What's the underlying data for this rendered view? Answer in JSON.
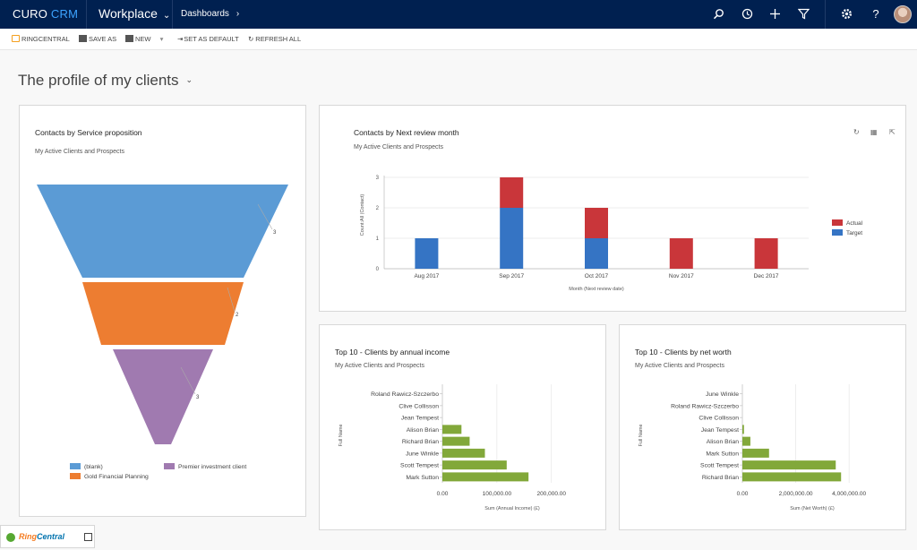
{
  "header": {
    "brand_main": "CURO",
    "brand_accent": "CRM",
    "area": "Workplace",
    "breadcrumb": "Dashboards",
    "icons": [
      "search-icon",
      "history-icon",
      "plus-icon",
      "filter-icon",
      "settings-icon",
      "help-icon"
    ]
  },
  "commands": {
    "ringcentral": "RINGCENTRAL",
    "save_as": "SAVE AS",
    "new": "NEW",
    "set_default": "SET AS DEFAULT",
    "refresh_all": "REFRESH ALL"
  },
  "page": {
    "title": "The profile of my clients"
  },
  "funnel_panel": {
    "title": "Contacts by Service proposition",
    "subtitle": "My Active Clients and Prospects",
    "legend": [
      "(blank)",
      "Premier investment client",
      "Gold Financial Planning"
    ]
  },
  "review_panel": {
    "title": "Contacts by Next review month",
    "subtitle": "My Active Clients and Prospects"
  },
  "income_panel": {
    "title": "Top 10 - Clients by annual income",
    "subtitle": "My Active Clients and Prospects"
  },
  "networth_panel": {
    "title": "Top 10 - Clients by net worth",
    "subtitle": "My Active Clients and Prospects"
  },
  "footer": {
    "ringcentral_a": "Ring",
    "ringcentral_b": "Central"
  },
  "chart_data": [
    {
      "id": "funnel",
      "type": "funnel",
      "title": "Contacts by Service proposition",
      "categories": [
        "(blank)",
        "Gold Financial Planning",
        "Premier investment client"
      ],
      "values": [
        3,
        2,
        3
      ],
      "colors": [
        "#5b9bd5",
        "#ed7d31",
        "#a07ab0"
      ]
    },
    {
      "id": "review",
      "type": "bar",
      "stacked": true,
      "title": "Contacts by Next review month",
      "categories": [
        "Aug 2017",
        "Sep 2017",
        "Oct 2017",
        "Nov 2017",
        "Dec 2017"
      ],
      "series": [
        {
          "name": "Target",
          "color": "#3574c4",
          "values": [
            1,
            2,
            1,
            0,
            0
          ]
        },
        {
          "name": "Actual",
          "color": "#c9363a",
          "values": [
            0,
            1,
            1,
            1,
            1
          ]
        }
      ],
      "legend": [
        "Actual",
        "Target"
      ],
      "xlabel": "Month (Next review date)",
      "ylabel": "Count:All (Contact)",
      "ylim": [
        0,
        3
      ],
      "yticks": [
        "0",
        "1",
        "2",
        "3"
      ]
    },
    {
      "id": "income",
      "type": "bar",
      "orientation": "horizontal",
      "title": "Top 10 - Clients by annual income",
      "categories": [
        "Roland Rawicz-Szczerbo",
        "Clive Collisson",
        "Jean Tempest",
        "Alison Brian",
        "Richard Brian",
        "June Winkle",
        "Scott Tempest",
        "Mark Sutton"
      ],
      "values": [
        0,
        0,
        0,
        35000,
        50000,
        78000,
        118000,
        158000
      ],
      "color": "#82a83a",
      "xlabel": "Sum (Annual Income) (£)",
      "ylabel": "Full Name",
      "xlim": [
        0,
        230000
      ],
      "xticks": [
        "0.00",
        "100,000.00",
        "200,000.00"
      ],
      "xtick_values": [
        0,
        100000,
        200000
      ]
    },
    {
      "id": "networth",
      "type": "bar",
      "orientation": "horizontal",
      "title": "Top 10 - Clients by net worth",
      "categories": [
        "June Winkle",
        "Roland Rawicz-Szczerbo",
        "Clive Collisson",
        "Jean Tempest",
        "Alison Brian",
        "Mark Sutton",
        "Scott Tempest",
        "Richard Brian"
      ],
      "values": [
        0,
        0,
        0,
        60000,
        300000,
        1000000,
        3500000,
        3700000
      ],
      "color": "#82a83a",
      "xlabel": "Sum (Net Worth) (£)",
      "ylabel": "Full Name",
      "xlim": [
        0,
        4700000
      ],
      "xticks": [
        "0.00",
        "2,000,000.00",
        "4,000,000.00"
      ],
      "xtick_values": [
        0,
        2000000,
        4000000
      ]
    }
  ]
}
